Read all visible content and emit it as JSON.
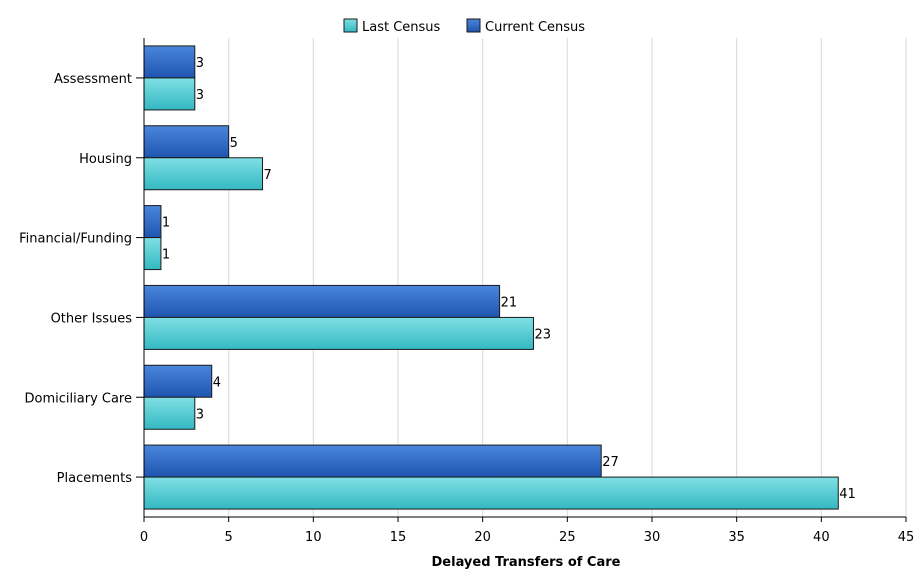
{
  "chart_data": {
    "type": "bar",
    "orientation": "horizontal",
    "categories": [
      "Assessment",
      "Housing",
      "Financial/Funding",
      "Other Issues",
      "Domiciliary Care",
      "Placements"
    ],
    "series": [
      {
        "name": "Current Census",
        "values": [
          3,
          5,
          1,
          21,
          4,
          27
        ],
        "color": "#2f68c4"
      },
      {
        "name": "Last Census",
        "values": [
          3,
          7,
          1,
          23,
          3,
          41
        ],
        "color": "#4ecbd2"
      }
    ],
    "legend_order": [
      "Last Census",
      "Current Census"
    ],
    "legend_position": "top",
    "xlabel": "Delayed Transfers of Care",
    "ylabel": "",
    "xlim": [
      0,
      45
    ],
    "xticks": [
      0,
      5,
      10,
      15,
      20,
      25,
      30,
      35,
      40,
      45
    ],
    "grid": "vertical",
    "data_labels": true
  }
}
